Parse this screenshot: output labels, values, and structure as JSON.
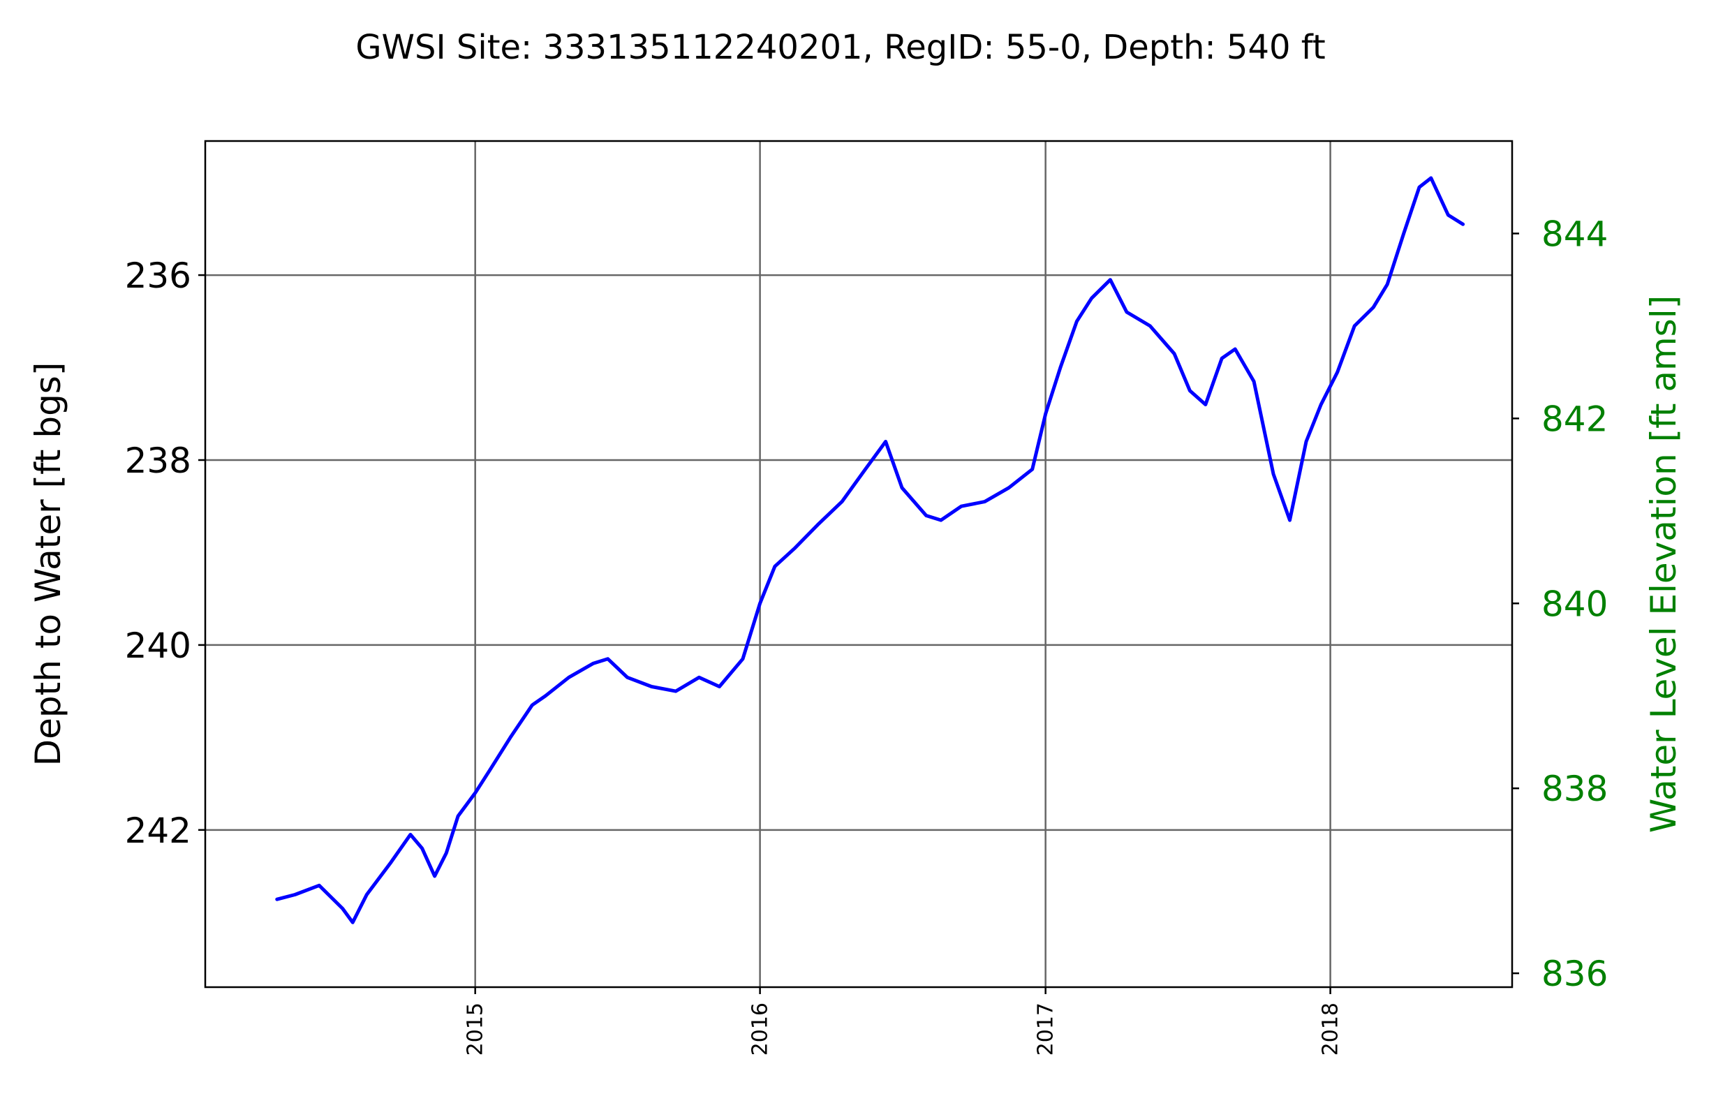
{
  "chart_data": {
    "type": "line",
    "title": "GWSI Site: 333135112240201, RegID: 55-0, Depth: 540 ft",
    "xlabel": "",
    "ylabel": "Depth to Water [ft bgs]",
    "y2label": "Water Level Elevation [ft amsl]",
    "xlim": [
      "2014-01-20",
      "2018-08-22"
    ],
    "ylim": [
      243.7,
      234.55
    ],
    "y_inverted": true,
    "y2lim": [
      835.85,
      845.0
    ],
    "x_ticks": [
      "2015",
      "2016",
      "2017",
      "2018"
    ],
    "x_tick_dates": [
      "2015-01-01",
      "2016-01-01",
      "2017-01-01",
      "2018-01-01"
    ],
    "y_ticks": [
      "236",
      "238",
      "240",
      "242"
    ],
    "y_tick_values": [
      236,
      238,
      240,
      242
    ],
    "y2_ticks": [
      "836",
      "838",
      "840",
      "842",
      "844"
    ],
    "y2_tick_values": [
      836,
      838,
      840,
      842,
      844
    ],
    "grid": true,
    "colors": {
      "series": "#0000ff",
      "right_axis": "#008000",
      "grid": "#666666",
      "axes": "#000000"
    },
    "series": [
      {
        "x": [
          "2014-04-22",
          "2014-05-15",
          "2014-06-15",
          "2014-07-15",
          "2014-07-28",
          "2014-08-15",
          "2014-09-15",
          "2014-10-10",
          "2014-10-25",
          "2014-11-10",
          "2014-11-25",
          "2014-12-10",
          "2015-01-01",
          "2015-01-20",
          "2015-02-15",
          "2015-03-15",
          "2015-04-01",
          "2015-05-01",
          "2015-06-01",
          "2015-06-20",
          "2015-07-15",
          "2015-08-15",
          "2015-09-15",
          "2015-10-15",
          "2015-11-10",
          "2015-12-10",
          "2016-01-01",
          "2016-01-20",
          "2016-02-15",
          "2016-03-15",
          "2016-04-15",
          "2016-05-15",
          "2016-06-10",
          "2016-07-01",
          "2016-08-01",
          "2016-08-20",
          "2016-09-15",
          "2016-10-15",
          "2016-11-15",
          "2016-12-15",
          "2017-01-01",
          "2017-01-20",
          "2017-02-10",
          "2017-03-01",
          "2017-03-25",
          "2017-04-15",
          "2017-05-15",
          "2017-06-15",
          "2017-07-05",
          "2017-07-25",
          "2017-08-15",
          "2017-09-01",
          "2017-09-25",
          "2017-10-20",
          "2017-11-10",
          "2017-12-01",
          "2017-12-20",
          "2018-01-10",
          "2018-02-01",
          "2018-02-25",
          "2018-03-15",
          "2018-04-05",
          "2018-04-25",
          "2018-05-10",
          "2018-06-01",
          "2018-06-20"
        ],
        "values": [
          242.75,
          242.7,
          242.6,
          242.85,
          243.0,
          242.7,
          242.35,
          242.05,
          242.2,
          242.5,
          242.25,
          241.85,
          241.6,
          241.35,
          241.0,
          240.65,
          240.55,
          240.35,
          240.2,
          240.15,
          240.35,
          240.45,
          240.5,
          240.35,
          240.45,
          240.15,
          239.55,
          239.15,
          238.95,
          238.7,
          238.45,
          238.1,
          237.8,
          238.3,
          238.6,
          238.65,
          238.5,
          238.45,
          238.3,
          238.1,
          237.5,
          237.0,
          236.5,
          236.25,
          236.05,
          236.4,
          236.55,
          236.85,
          237.25,
          237.4,
          236.9,
          236.8,
          237.15,
          238.15,
          238.65,
          237.8,
          237.4,
          237.05,
          236.55,
          236.35,
          236.1,
          235.55,
          235.05,
          234.95,
          235.35,
          235.45
        ]
      }
    ]
  }
}
